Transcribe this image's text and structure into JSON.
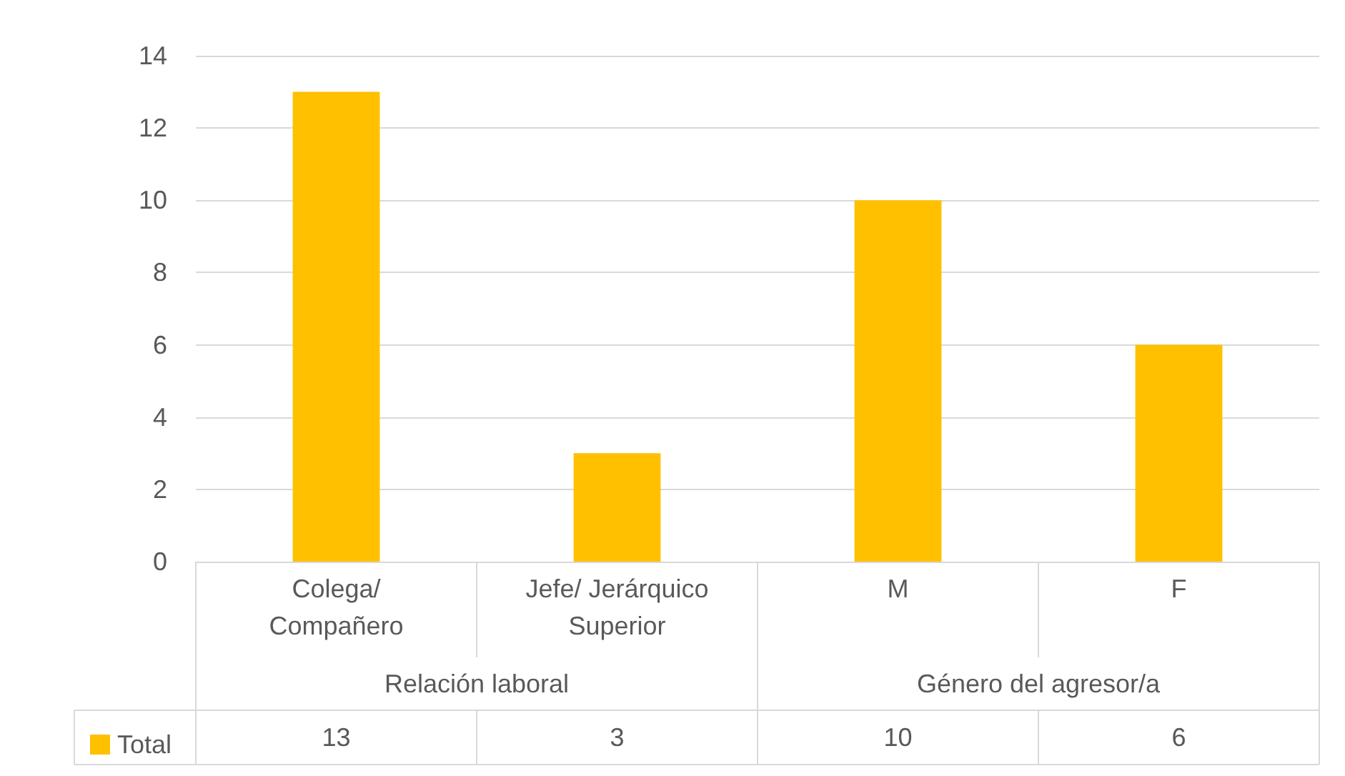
{
  "chart_data": {
    "type": "bar",
    "categories": [
      "Colega/\nCompañero",
      "Jefe/ Jerárquico\nSuperior",
      "M",
      "F"
    ],
    "series": [
      {
        "name": "Total",
        "color": "#ffc000",
        "values": [
          13,
          3,
          10,
          6
        ]
      }
    ],
    "annotations": [
      "Relación laboral",
      "Género del agresor/a"
    ],
    "ylim": [
      0,
      14
    ],
    "yticks": [
      0,
      2,
      4,
      6,
      8,
      10,
      12,
      14
    ],
    "grid": "y",
    "legend": "bottom",
    "data_labels": true
  }
}
